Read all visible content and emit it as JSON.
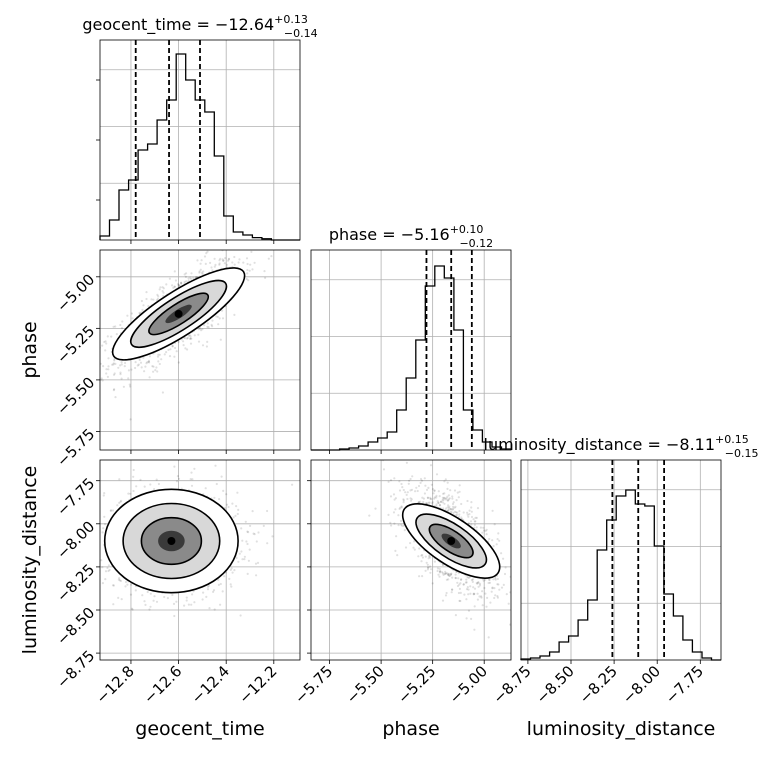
{
  "chart_data": {
    "type": "corner",
    "grid": true,
    "parameters": [
      {
        "name": "geocent_time",
        "xlabel": "geocent_time",
        "title_main": "geocent_time = −12.64",
        "title_sup": "+0.13",
        "title_sub": "−0.14",
        "range": [
          -12.93,
          -12.09
        ],
        "ticks": [
          -12.8,
          -12.6,
          -12.4,
          -12.2
        ],
        "tick_labels": [
          "−12.8",
          "−12.6",
          "−12.4",
          "−12.2"
        ],
        "quantiles": [
          -12.78,
          -12.64,
          -12.51
        ],
        "hist": [
          0.02,
          0.1,
          0.25,
          0.3,
          0.45,
          0.48,
          0.6,
          0.7,
          0.93,
          0.8,
          0.7,
          0.64,
          0.42,
          0.12,
          0.04,
          0.025,
          0.012,
          0.006,
          0.0,
          0.0,
          0.0
        ]
      },
      {
        "name": "phase",
        "xlabel": "phase",
        "ylabel": "phase",
        "title_main": "phase = −5.16",
        "title_sup": "+0.10",
        "title_sub": "−0.12",
        "range": [
          -5.84,
          -4.87
        ],
        "ticks": [
          -5.75,
          -5.5,
          -5.25,
          -5.0
        ],
        "tick_labels": [
          "−5.75",
          "−5.50",
          "−5.25",
          "−5.00"
        ],
        "quantiles": [
          -5.28,
          -5.16,
          -5.06
        ],
        "hist": [
          0.0,
          0.0,
          0.0,
          0.005,
          0.01,
          0.02,
          0.04,
          0.06,
          0.09,
          0.2,
          0.36,
          0.55,
          0.82,
          0.92,
          0.86,
          0.6,
          0.2,
          0.1,
          0.04,
          0.015,
          0.005
        ]
      },
      {
        "name": "luminosity_distance",
        "xlabel": "luminosity_distance",
        "ylabel": "luminosity_distance",
        "title_main": "luminosity_distance = −8.11",
        "title_sup": "+0.15",
        "title_sub": "−0.15",
        "range": [
          -8.79,
          -7.63
        ],
        "ticks": [
          -8.75,
          -8.5,
          -8.25,
          -8.0,
          -7.75
        ],
        "tick_labels": [
          "−8.75",
          "−8.50",
          "−8.25",
          "−8.00",
          "−7.75"
        ],
        "quantiles": [
          -8.26,
          -8.11,
          -7.96
        ],
        "hist": [
          0.005,
          0.01,
          0.02,
          0.04,
          0.09,
          0.12,
          0.2,
          0.3,
          0.55,
          0.7,
          0.82,
          0.85,
          0.78,
          0.77,
          0.57,
          0.33,
          0.22,
          0.1,
          0.04,
          0.01,
          0.0
        ]
      }
    ],
    "pairs": [
      {
        "x": "geocent_time",
        "y": "phase",
        "x_center": -12.6,
        "y_center": -5.18,
        "x_std": 0.13,
        "y_std": 0.13,
        "correlation": 0.75
      },
      {
        "x": "geocent_time",
        "y": "luminosity_distance",
        "x_center": -12.63,
        "y_center": -8.1,
        "x_std": 0.14,
        "y_std": 0.15,
        "correlation": 0.0
      },
      {
        "x": "phase",
        "y": "luminosity_distance",
        "x_center": -5.16,
        "y_center": -8.1,
        "x_std": 0.11,
        "y_std": 0.15,
        "correlation": -0.6
      }
    ]
  }
}
